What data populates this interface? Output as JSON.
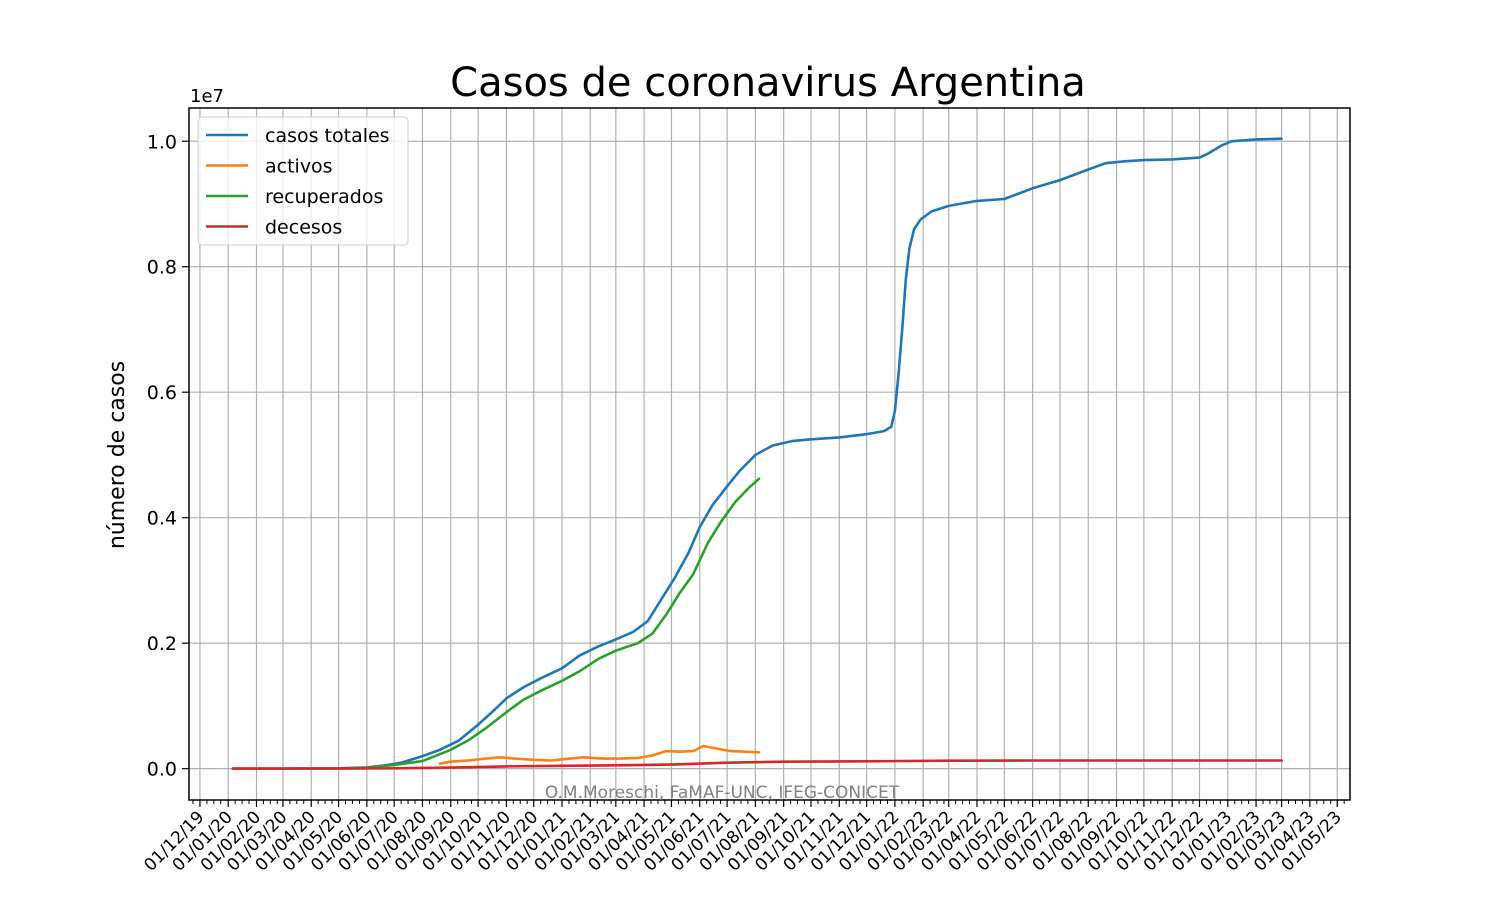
{
  "chart_data": {
    "type": "line",
    "title": "Casos de coronavirus Argentina",
    "xlabel": "",
    "ylabel": "número de casos",
    "y_scale_label": "1e7",
    "y_unit_multiplier": 10000000,
    "ylim": [
      -0.05,
      1.053
    ],
    "y_ticks": [
      0.0,
      0.2,
      0.4,
      0.6,
      0.8,
      1.0
    ],
    "y_tick_labels": [
      "0.0",
      "0.2",
      "0.4",
      "0.6",
      "0.8",
      "1.0"
    ],
    "x_range": [
      "2019-11-19",
      "2023-05-15"
    ],
    "x_ticks": [
      "2019-12-01",
      "2020-01-01",
      "2020-02-01",
      "2020-03-01",
      "2020-04-01",
      "2020-05-01",
      "2020-06-01",
      "2020-07-01",
      "2020-08-01",
      "2020-09-01",
      "2020-10-01",
      "2020-11-01",
      "2020-12-01",
      "2021-01-01",
      "2021-02-01",
      "2021-03-01",
      "2021-04-01",
      "2021-05-01",
      "2021-06-01",
      "2021-07-01",
      "2021-08-01",
      "2021-09-01",
      "2021-10-01",
      "2021-11-01",
      "2021-12-01",
      "2022-01-01",
      "2022-02-01",
      "2022-03-01",
      "2022-04-01",
      "2022-05-01",
      "2022-06-01",
      "2022-07-01",
      "2022-08-01",
      "2022-09-01",
      "2022-10-01",
      "2022-11-01",
      "2022-12-01",
      "2023-01-01",
      "2023-02-01",
      "2023-03-01",
      "2023-04-01",
      "2023-05-01"
    ],
    "x_tick_labels": [
      "01/12/19",
      "01/01/20",
      "01/02/20",
      "01/03/20",
      "01/04/20",
      "01/05/20",
      "01/06/20",
      "01/07/20",
      "01/08/20",
      "01/09/20",
      "01/10/20",
      "01/11/20",
      "01/12/20",
      "01/01/21",
      "01/02/21",
      "01/03/21",
      "01/04/21",
      "01/05/21",
      "01/06/21",
      "01/07/21",
      "01/08/21",
      "01/09/21",
      "01/10/21",
      "01/11/21",
      "01/12/21",
      "01/01/22",
      "01/02/22",
      "01/03/22",
      "01/04/22",
      "01/05/22",
      "01/06/22",
      "01/07/22",
      "01/08/22",
      "01/09/22",
      "01/10/22",
      "01/11/22",
      "01/12/22",
      "01/01/23",
      "01/02/23",
      "01/03/23",
      "01/04/23",
      "01/05/23"
    ],
    "grid": true,
    "legend_position": "top-left",
    "annotation": "O.M.Moreschi, FaMAF-UNC, IFEG-CONICET",
    "series": [
      {
        "name": "casos totales",
        "color": "#1f77b4",
        "points": [
          [
            "2020-01-06",
            0
          ],
          [
            "2020-03-01",
            0
          ],
          [
            "2020-05-01",
            0.0005
          ],
          [
            "2020-06-01",
            0.002
          ],
          [
            "2020-06-20",
            0.005
          ],
          [
            "2020-07-10",
            0.01
          ],
          [
            "2020-08-01",
            0.02
          ],
          [
            "2020-08-20",
            0.03
          ],
          [
            "2020-09-10",
            0.045
          ],
          [
            "2020-10-01",
            0.07
          ],
          [
            "2020-10-20",
            0.095
          ],
          [
            "2020-11-01",
            0.112
          ],
          [
            "2020-11-20",
            0.13
          ],
          [
            "2020-12-10",
            0.145
          ],
          [
            "2021-01-01",
            0.16
          ],
          [
            "2021-01-20",
            0.18
          ],
          [
            "2021-02-10",
            0.195
          ],
          [
            "2021-03-01",
            0.206
          ],
          [
            "2021-03-20",
            0.218
          ],
          [
            "2021-04-05",
            0.235
          ],
          [
            "2021-04-20",
            0.27
          ],
          [
            "2021-05-05",
            0.305
          ],
          [
            "2021-05-20",
            0.345
          ],
          [
            "2021-06-01",
            0.385
          ],
          [
            "2021-06-15",
            0.42
          ],
          [
            "2021-07-01",
            0.45
          ],
          [
            "2021-07-15",
            0.475
          ],
          [
            "2021-08-01",
            0.5
          ],
          [
            "2021-08-20",
            0.515
          ],
          [
            "2021-09-10",
            0.522
          ],
          [
            "2021-10-01",
            0.525
          ],
          [
            "2021-11-01",
            0.528
          ],
          [
            "2021-12-01",
            0.533
          ],
          [
            "2021-12-20",
            0.538
          ],
          [
            "2021-12-28",
            0.545
          ],
          [
            "2022-01-01",
            0.57
          ],
          [
            "2022-01-05",
            0.63
          ],
          [
            "2022-01-09",
            0.7
          ],
          [
            "2022-01-13",
            0.78
          ],
          [
            "2022-01-17",
            0.83
          ],
          [
            "2022-01-22",
            0.86
          ],
          [
            "2022-01-29",
            0.875
          ],
          [
            "2022-02-10",
            0.888
          ],
          [
            "2022-03-01",
            0.897
          ],
          [
            "2022-04-01",
            0.905
          ],
          [
            "2022-05-01",
            0.908
          ],
          [
            "2022-06-01",
            0.925
          ],
          [
            "2022-07-01",
            0.938
          ],
          [
            "2022-08-01",
            0.955
          ],
          [
            "2022-08-20",
            0.965
          ],
          [
            "2022-09-10",
            0.968
          ],
          [
            "2022-10-01",
            0.97
          ],
          [
            "2022-11-01",
            0.971
          ],
          [
            "2022-12-01",
            0.974
          ],
          [
            "2022-12-10",
            0.98
          ],
          [
            "2022-12-25",
            0.993
          ],
          [
            "2023-01-05",
            1.0
          ],
          [
            "2023-02-01",
            1.003
          ],
          [
            "2023-03-01",
            1.004
          ]
        ]
      },
      {
        "name": "activos",
        "color": "#ff7f0e",
        "points": [
          [
            "2020-08-20",
            0.008
          ],
          [
            "2020-09-01",
            0.011
          ],
          [
            "2020-09-20",
            0.013
          ],
          [
            "2020-10-10",
            0.016
          ],
          [
            "2020-10-25",
            0.018
          ],
          [
            "2020-11-10",
            0.016
          ],
          [
            "2020-12-01",
            0.014
          ],
          [
            "2020-12-20",
            0.013
          ],
          [
            "2021-01-10",
            0.016
          ],
          [
            "2021-01-25",
            0.018
          ],
          [
            "2021-02-15",
            0.016
          ],
          [
            "2021-03-05",
            0.016
          ],
          [
            "2021-03-25",
            0.017
          ],
          [
            "2021-04-10",
            0.021
          ],
          [
            "2021-04-25",
            0.028
          ],
          [
            "2021-05-10",
            0.027
          ],
          [
            "2021-05-25",
            0.028
          ],
          [
            "2021-06-05",
            0.036
          ],
          [
            "2021-06-20",
            0.032
          ],
          [
            "2021-07-05",
            0.028
          ],
          [
            "2021-07-20",
            0.027
          ],
          [
            "2021-08-05",
            0.026
          ]
        ]
      },
      {
        "name": "recuperados",
        "color": "#2ca02c",
        "points": [
          [
            "2020-05-10",
            0
          ],
          [
            "2020-06-01",
            0.0015
          ],
          [
            "2020-07-01",
            0.006
          ],
          [
            "2020-08-01",
            0.012
          ],
          [
            "2020-08-15",
            0.02
          ],
          [
            "2020-09-01",
            0.03
          ],
          [
            "2020-09-20",
            0.045
          ],
          [
            "2020-10-10",
            0.065
          ],
          [
            "2020-11-01",
            0.09
          ],
          [
            "2020-11-20",
            0.11
          ],
          [
            "2020-12-10",
            0.125
          ],
          [
            "2021-01-01",
            0.14
          ],
          [
            "2021-01-20",
            0.155
          ],
          [
            "2021-02-10",
            0.175
          ],
          [
            "2021-03-01",
            0.188
          ],
          [
            "2021-03-25",
            0.2
          ],
          [
            "2021-04-10",
            0.215
          ],
          [
            "2021-04-25",
            0.245
          ],
          [
            "2021-05-10",
            0.28
          ],
          [
            "2021-05-25",
            0.31
          ],
          [
            "2021-06-10",
            0.36
          ],
          [
            "2021-06-25",
            0.395
          ],
          [
            "2021-07-10",
            0.425
          ],
          [
            "2021-07-25",
            0.448
          ],
          [
            "2021-08-05",
            0.462
          ]
        ]
      },
      {
        "name": "decesos",
        "color": "#d62728",
        "points": [
          [
            "2020-01-06",
            0
          ],
          [
            "2020-05-01",
            0.0001
          ],
          [
            "2020-07-01",
            0.0006
          ],
          [
            "2020-09-01",
            0.0017
          ],
          [
            "2020-11-01",
            0.0035
          ],
          [
            "2021-01-01",
            0.0045
          ],
          [
            "2021-03-01",
            0.0053
          ],
          [
            "2021-05-01",
            0.0065
          ],
          [
            "2021-07-01",
            0.0095
          ],
          [
            "2021-09-01",
            0.011
          ],
          [
            "2021-12-01",
            0.0117
          ],
          [
            "2022-03-01",
            0.0127
          ],
          [
            "2022-06-01",
            0.0129
          ],
          [
            "2022-09-01",
            0.013
          ],
          [
            "2023-01-01",
            0.013
          ],
          [
            "2023-03-01",
            0.013
          ]
        ]
      }
    ]
  }
}
